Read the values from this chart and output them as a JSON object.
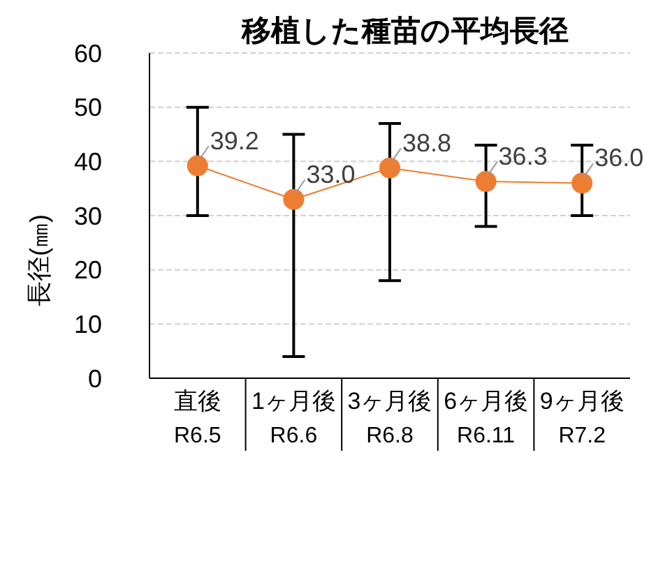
{
  "chart_data": {
    "type": "line",
    "title": "移植した種苗の平均長径",
    "ylabel": "長径(㎜)",
    "categories": [
      "直後\nR6.5",
      "1ヶ月後\nR6.6",
      "3ヶ月後\nR6.8",
      "6ヶ月後\nR6.11",
      "9ヶ月後\nR7.2"
    ],
    "series": [
      {
        "color": "#ed7d31",
        "values": [
          39.2,
          33.0,
          38.8,
          36.3,
          36.0
        ],
        "value_labels": [
          "39.2",
          "33.0",
          "38.8",
          "36.3",
          "36.0"
        ],
        "errors": [
          [
            30,
            50
          ],
          [
            4,
            45
          ],
          [
            18,
            47
          ],
          [
            28,
            43
          ],
          [
            30,
            43
          ]
        ]
      }
    ],
    "ylim": [
      0,
      60
    ],
    "yticks": [
      0,
      10,
      20,
      30,
      40,
      50,
      60
    ],
    "grid": "y",
    "marker": "circle"
  }
}
